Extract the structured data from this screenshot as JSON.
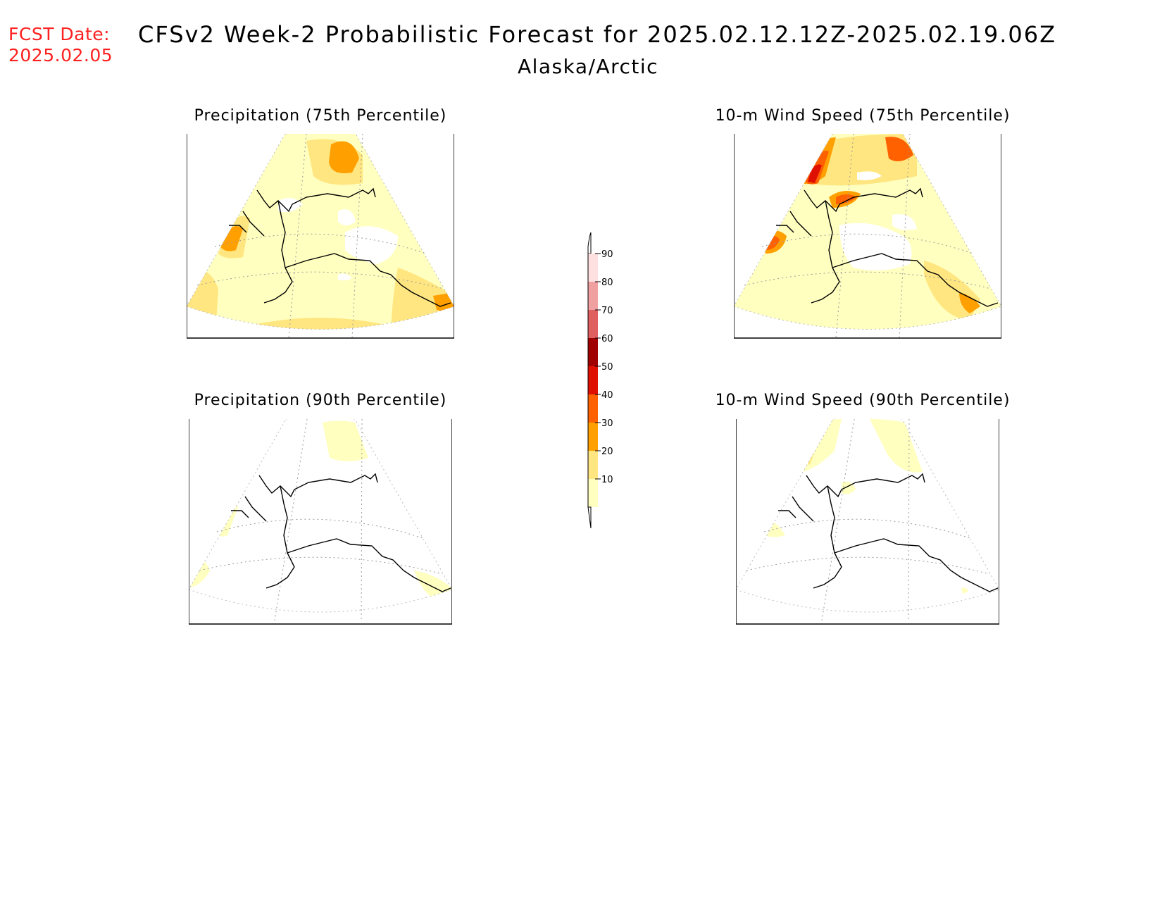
{
  "header": {
    "fcst_label": "FCST Date:",
    "fcst_date": "2025.02.05",
    "title": "CFSv2 Week-2 Probabilistic Forecast for 2025.02.12.12Z-2025.02.19.06Z",
    "subtitle": "Alaska/Arctic"
  },
  "panels": [
    {
      "title": "Precipitation (75th Percentile)"
    },
    {
      "title": "10-m Wind Speed (75th Percentile)"
    },
    {
      "title": "Precipitation (90th Percentile)"
    },
    {
      "title": "10-m Wind Speed (90th Percentile)"
    }
  ],
  "colorbar": {
    "levels": [
      "10",
      "20",
      "30",
      "40",
      "50",
      "60",
      "70",
      "80",
      "90"
    ],
    "colors": [
      "#ffffc0",
      "#ffe680",
      "#ffa000",
      "#ff6000",
      "#e01000",
      "#a00000",
      "#e06060",
      "#f0a0a0",
      "#ffe0e0"
    ]
  }
}
